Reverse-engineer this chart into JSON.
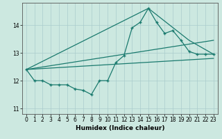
{
  "title": "",
  "xlabel": "Humidex (Indice chaleur)",
  "bg_color": "#cce8e0",
  "grid_color": "#aacccc",
  "line_color": "#1a7a6e",
  "xlim": [
    -0.5,
    23.5
  ],
  "ylim": [
    10.8,
    14.8
  ],
  "yticks": [
    11,
    12,
    13,
    14
  ],
  "xticks": [
    0,
    1,
    2,
    3,
    4,
    5,
    6,
    7,
    8,
    9,
    10,
    11,
    12,
    13,
    14,
    15,
    16,
    17,
    18,
    19,
    20,
    21,
    22,
    23
  ],
  "series1_x": [
    0,
    1,
    2,
    3,
    4,
    5,
    6,
    7,
    8,
    9,
    10,
    11,
    12,
    13,
    14,
    15,
    16,
    17,
    18,
    19,
    20,
    21,
    22,
    23
  ],
  "series1_y": [
    12.4,
    12.0,
    12.0,
    11.85,
    11.85,
    11.85,
    11.7,
    11.65,
    11.5,
    12.0,
    12.0,
    12.65,
    12.9,
    13.9,
    14.1,
    14.6,
    14.1,
    13.7,
    13.8,
    13.45,
    13.05,
    12.95,
    12.95,
    12.95
  ],
  "line1_x": [
    0,
    15,
    20,
    23
  ],
  "line1_y": [
    12.4,
    14.6,
    13.45,
    12.95
  ],
  "line2_x": [
    0,
    23
  ],
  "line2_y": [
    12.4,
    13.45
  ],
  "line3_x": [
    0,
    23
  ],
  "line3_y": [
    12.4,
    12.8
  ]
}
